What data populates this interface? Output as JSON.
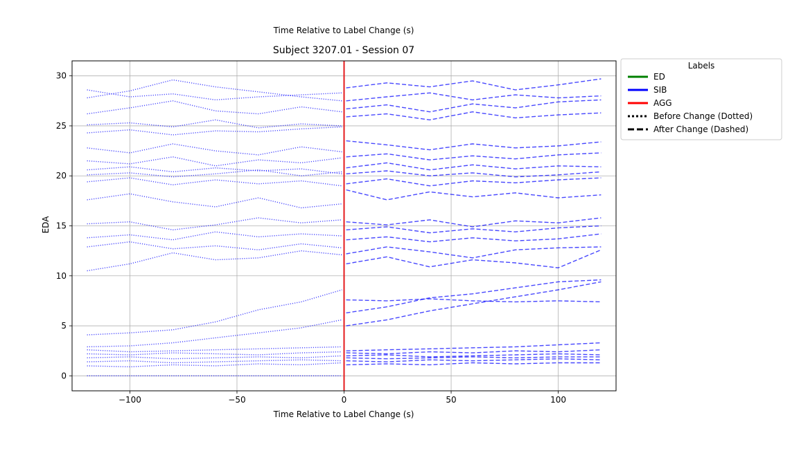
{
  "chart_data": {
    "type": "line",
    "suptitle": "Time Relative to Label Change (s)",
    "title": "Subject 3207.01 - Session 07",
    "xlabel": "Time Relative to Label Change (s)",
    "ylabel": "EDA",
    "xlim": [
      -127,
      127
    ],
    "ylim": [
      -1.5,
      31.5
    ],
    "xticks": [
      -100,
      -50,
      0,
      50,
      100
    ],
    "xtick_labels": [
      "−100",
      "−50",
      "0",
      "50",
      "100"
    ],
    "yticks": [
      0,
      5,
      10,
      15,
      20,
      25,
      30
    ],
    "ytick_labels": [
      "0",
      "5",
      "10",
      "15",
      "20",
      "25",
      "30"
    ],
    "grid": true,
    "x_range": [
      -120,
      120
    ],
    "change_marker": {
      "x": 0,
      "color": "#e41a1c"
    },
    "legend": {
      "title": "Labels",
      "placement": "outside-right-top",
      "entries": [
        {
          "label": "ED",
          "color": "#008000",
          "style": "solid"
        },
        {
          "label": "SIB",
          "color": "#0000ff",
          "style": "solid"
        },
        {
          "label": "AGG",
          "color": "#ff0000",
          "style": "solid"
        },
        {
          "label": "Before Change (Dotted)",
          "color": "#000000",
          "style": "dotted"
        },
        {
          "label": "After Change (Dashed)",
          "color": "#000000",
          "style": "dashed"
        }
      ]
    },
    "series_color": "#0000ff",
    "before_series": [
      {
        "x": [
          -120,
          -100,
          -80,
          -60,
          -40,
          -20,
          -1
        ],
        "y": [
          27.8,
          28.5,
          29.6,
          28.9,
          28.4,
          27.9,
          27.5
        ]
      },
      {
        "x": [
          -120,
          -100,
          -80,
          -60,
          -40,
          -20,
          -1
        ],
        "y": [
          28.6,
          27.9,
          28.2,
          27.6,
          27.9,
          28.1,
          28.3
        ]
      },
      {
        "x": [
          -120,
          -100,
          -80,
          -60,
          -40,
          -20,
          -1
        ],
        "y": [
          26.2,
          26.8,
          27.5,
          26.5,
          26.2,
          26.9,
          26.4
        ]
      },
      {
        "x": [
          -120,
          -100,
          -80,
          -60,
          -40,
          -20,
          -1
        ],
        "y": [
          25.1,
          25.3,
          24.9,
          25.6,
          24.8,
          25.2,
          25.0
        ]
      },
      {
        "x": [
          -120,
          -100,
          -80,
          -60,
          -40,
          -20,
          -1
        ],
        "y": [
          24.3,
          24.6,
          24.1,
          24.5,
          24.4,
          24.7,
          24.9
        ]
      },
      {
        "x": [
          -120,
          -100,
          -80,
          -60,
          -40,
          -20,
          -1
        ],
        "y": [
          22.8,
          22.3,
          23.2,
          22.5,
          22.1,
          22.9,
          22.4
        ]
      },
      {
        "x": [
          -120,
          -100,
          -80,
          -60,
          -40,
          -20,
          -1
        ],
        "y": [
          21.5,
          21.2,
          21.9,
          21.0,
          21.6,
          21.3,
          21.8
        ]
      },
      {
        "x": [
          -120,
          -100,
          -80,
          -60,
          -40,
          -20,
          -1
        ],
        "y": [
          20.6,
          20.9,
          20.4,
          20.8,
          20.5,
          20.7,
          20.2
        ]
      },
      {
        "x": [
          -120,
          -100,
          -80,
          -60,
          -40,
          -20,
          -1
        ],
        "y": [
          20.1,
          20.3,
          19.9,
          20.2,
          20.6,
          20.0,
          20.4
        ]
      },
      {
        "x": [
          -120,
          -100,
          -80,
          -60,
          -40,
          -20,
          -1
        ],
        "y": [
          19.4,
          19.8,
          19.1,
          19.6,
          19.2,
          19.5,
          19.0
        ]
      },
      {
        "x": [
          -120,
          -100,
          -80,
          -60,
          -40,
          -20,
          -1
        ],
        "y": [
          17.6,
          18.2,
          17.4,
          16.9,
          17.8,
          16.8,
          17.2
        ]
      },
      {
        "x": [
          -120,
          -100,
          -80,
          -60,
          -40,
          -20,
          -1
        ],
        "y": [
          15.2,
          15.4,
          14.6,
          15.1,
          15.8,
          15.3,
          15.6
        ]
      },
      {
        "x": [
          -120,
          -100,
          -80,
          -60,
          -40,
          -20,
          -1
        ],
        "y": [
          13.8,
          14.1,
          13.6,
          14.4,
          13.9,
          14.2,
          14.0
        ]
      },
      {
        "x": [
          -120,
          -100,
          -80,
          -60,
          -40,
          -20,
          -1
        ],
        "y": [
          12.9,
          13.4,
          12.7,
          13.0,
          12.6,
          13.2,
          12.8
        ]
      },
      {
        "x": [
          -120,
          -100,
          -80,
          -60,
          -40,
          -20,
          -1
        ],
        "y": [
          10.5,
          11.2,
          12.3,
          11.6,
          11.8,
          12.5,
          12.1
        ]
      },
      {
        "x": [
          -120,
          -100,
          -80,
          -60,
          -40,
          -20,
          -1
        ],
        "y": [
          4.1,
          4.3,
          4.6,
          5.4,
          6.6,
          7.4,
          8.6
        ]
      },
      {
        "x": [
          -120,
          -100,
          -80,
          -60,
          -40,
          -20,
          -1
        ],
        "y": [
          2.9,
          3.0,
          3.3,
          3.8,
          4.3,
          4.8,
          5.6
        ]
      },
      {
        "x": [
          -120,
          -100,
          -80,
          -60,
          -40,
          -20,
          -1
        ],
        "y": [
          2.6,
          2.4,
          2.5,
          2.6,
          2.7,
          2.8,
          2.9
        ]
      },
      {
        "x": [
          -120,
          -100,
          -80,
          -60,
          -40,
          -20,
          -1
        ],
        "y": [
          2.2,
          2.1,
          2.3,
          2.2,
          2.1,
          2.3,
          2.4
        ]
      },
      {
        "x": [
          -120,
          -100,
          -80,
          -60,
          -40,
          -20,
          -1
        ],
        "y": [
          1.8,
          1.9,
          1.7,
          1.8,
          1.9,
          1.8,
          2.0
        ]
      },
      {
        "x": [
          -120,
          -100,
          -80,
          -60,
          -40,
          -20,
          -1
        ],
        "y": [
          1.4,
          1.5,
          1.3,
          1.4,
          1.5,
          1.6,
          1.5
        ]
      },
      {
        "x": [
          -120,
          -100,
          -80,
          -60,
          -40,
          -20,
          -1
        ],
        "y": [
          1.0,
          0.9,
          1.1,
          1.0,
          1.2,
          1.1,
          1.3
        ]
      },
      {
        "x": [
          -120,
          -100,
          -80,
          -60,
          -40,
          -20,
          -1
        ],
        "y": [
          0.0,
          0.0,
          0.0,
          0.0,
          0.0,
          0.0,
          0.0
        ]
      }
    ],
    "after_series": [
      {
        "x": [
          1,
          20,
          40,
          60,
          80,
          100,
          120
        ],
        "y": [
          28.8,
          29.3,
          28.9,
          29.5,
          28.6,
          29.1,
          29.7
        ]
      },
      {
        "x": [
          1,
          20,
          40,
          60,
          80,
          100,
          120
        ],
        "y": [
          27.5,
          27.9,
          28.3,
          27.6,
          28.1,
          27.8,
          28.0
        ]
      },
      {
        "x": [
          1,
          20,
          40,
          60,
          80,
          100,
          120
        ],
        "y": [
          26.7,
          27.1,
          26.4,
          27.2,
          26.8,
          27.4,
          27.6
        ]
      },
      {
        "x": [
          1,
          20,
          40,
          60,
          80,
          100,
          120
        ],
        "y": [
          25.9,
          26.2,
          25.6,
          26.4,
          25.8,
          26.1,
          26.3
        ]
      },
      {
        "x": [
          1,
          20,
          40,
          60,
          80,
          100,
          120
        ],
        "y": [
          23.5,
          23.1,
          22.6,
          23.2,
          22.8,
          23.0,
          23.4
        ]
      },
      {
        "x": [
          1,
          20,
          40,
          60,
          80,
          100,
          120
        ],
        "y": [
          21.9,
          22.2,
          21.6,
          22.0,
          21.7,
          22.1,
          22.3
        ]
      },
      {
        "x": [
          1,
          20,
          40,
          60,
          80,
          100,
          120
        ],
        "y": [
          20.8,
          21.3,
          20.6,
          21.1,
          20.7,
          21.0,
          20.9
        ]
      },
      {
        "x": [
          1,
          20,
          40,
          60,
          80,
          100,
          120
        ],
        "y": [
          20.2,
          20.5,
          20.0,
          20.3,
          19.9,
          20.1,
          20.4
        ]
      },
      {
        "x": [
          1,
          20,
          40,
          60,
          80,
          100,
          120
        ],
        "y": [
          19.2,
          19.7,
          19.0,
          19.5,
          19.3,
          19.6,
          19.8
        ]
      },
      {
        "x": [
          1,
          20,
          40,
          60,
          80,
          100,
          120
        ],
        "y": [
          18.6,
          17.6,
          18.4,
          17.9,
          18.3,
          17.8,
          18.1
        ]
      },
      {
        "x": [
          1,
          20,
          40,
          60,
          80,
          100,
          120
        ],
        "y": [
          15.4,
          15.1,
          15.6,
          14.9,
          15.5,
          15.3,
          15.8
        ]
      },
      {
        "x": [
          1,
          20,
          40,
          60,
          80,
          100,
          120
        ],
        "y": [
          14.6,
          14.9,
          14.3,
          14.7,
          14.4,
          14.8,
          15.0
        ]
      },
      {
        "x": [
          1,
          20,
          40,
          60,
          80,
          100,
          120
        ],
        "y": [
          13.6,
          13.9,
          13.4,
          13.8,
          13.5,
          13.7,
          14.2
        ]
      },
      {
        "x": [
          1,
          20,
          40,
          60,
          80,
          100,
          120
        ],
        "y": [
          12.2,
          12.9,
          12.4,
          11.8,
          12.6,
          12.8,
          12.9
        ]
      },
      {
        "x": [
          1,
          20,
          40,
          60,
          80,
          100,
          120
        ],
        "y": [
          11.2,
          11.9,
          10.9,
          11.6,
          11.3,
          10.8,
          12.6
        ]
      },
      {
        "x": [
          1,
          20,
          40,
          60,
          80,
          100,
          120
        ],
        "y": [
          6.3,
          6.9,
          7.8,
          8.2,
          8.8,
          9.4,
          9.6
        ]
      },
      {
        "x": [
          1,
          20,
          40,
          60,
          80,
          100,
          120
        ],
        "y": [
          7.6,
          7.5,
          7.7,
          7.5,
          7.4,
          7.5,
          7.4
        ]
      },
      {
        "x": [
          1,
          20,
          40,
          60,
          80,
          100,
          120
        ],
        "y": [
          5.0,
          5.6,
          6.5,
          7.2,
          7.9,
          8.6,
          9.4
        ]
      },
      {
        "x": [
          1,
          20,
          40,
          60,
          80,
          100,
          120
        ],
        "y": [
          2.5,
          2.6,
          2.7,
          2.8,
          2.9,
          3.1,
          3.3
        ]
      },
      {
        "x": [
          1,
          20,
          40,
          60,
          80,
          100,
          120
        ],
        "y": [
          2.3,
          2.2,
          2.4,
          2.3,
          2.5,
          2.4,
          2.6
        ]
      },
      {
        "x": [
          1,
          20,
          40,
          60,
          80,
          100,
          120
        ],
        "y": [
          2.0,
          2.1,
          1.9,
          2.0,
          2.1,
          2.2,
          2.1
        ]
      },
      {
        "x": [
          1,
          20,
          40,
          60,
          80,
          100,
          120
        ],
        "y": [
          1.8,
          1.7,
          1.8,
          1.9,
          1.8,
          1.9,
          1.9
        ]
      },
      {
        "x": [
          1,
          20,
          40,
          60,
          80,
          100,
          120
        ],
        "y": [
          1.5,
          1.4,
          1.6,
          1.5,
          1.6,
          1.7,
          1.6
        ]
      },
      {
        "x": [
          1,
          20,
          40,
          60,
          80,
          100,
          120
        ],
        "y": [
          1.1,
          1.2,
          1.1,
          1.3,
          1.2,
          1.3,
          1.3
        ]
      }
    ]
  }
}
